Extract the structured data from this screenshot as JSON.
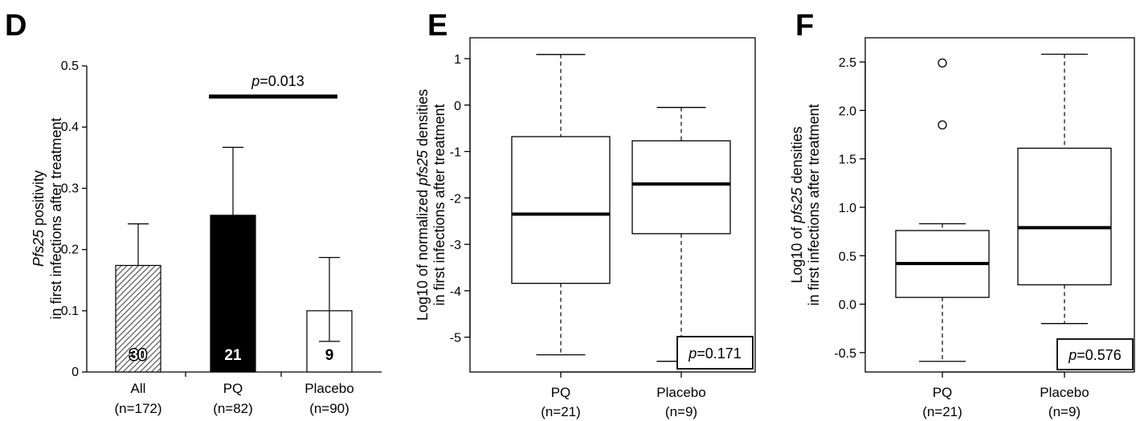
{
  "chart_data": [
    {
      "panel": "D",
      "type": "bar",
      "ylabel_line1": "Pfs25 positivity",
      "ylabel_line1_italic": "Pfs25",
      "ylabel_line1_rest": " positivity",
      "ylabel_line2": "in first infections after treatment",
      "ylim": [
        0,
        0.5
      ],
      "yticks": [
        "0",
        "0.1",
        "0.2",
        "0.3",
        "0.4",
        "0.5"
      ],
      "ytick_values": [
        0,
        0.1,
        0.2,
        0.3,
        0.4,
        0.5
      ],
      "categories": [
        {
          "name": "All",
          "n": "(n=172)"
        },
        {
          "name": "PQ",
          "n": "(n=82)"
        },
        {
          "name": "Placebo",
          "n": "(n=90)"
        }
      ],
      "values": [
        0.174,
        0.256,
        0.1
      ],
      "error_low": [
        0.122,
        0.256,
        0.05
      ],
      "error_high": [
        0.242,
        0.367,
        0.187
      ],
      "bar_labels": [
        "30",
        "21",
        "9"
      ],
      "bar_styles": [
        "hatched",
        "black",
        "white"
      ],
      "pvalue": {
        "prefix": "p",
        "text": "=0.013",
        "between": [
          1,
          2
        ],
        "y": 0.45
      }
    },
    {
      "panel": "E",
      "type": "box",
      "ylabel_line1_pre": "Log10 of normalized ",
      "ylabel_line1_italic": "pfs25",
      "ylabel_line1_post": " densities",
      "ylabel_line2": "in first infections after treatment",
      "ylim": [
        -5.75,
        1.45
      ],
      "yticks": [
        "1",
        "0",
        "-1",
        "-2",
        "-3",
        "-4",
        "-5"
      ],
      "ytick_values": [
        1,
        0,
        -1,
        -2,
        -3,
        -4,
        -5
      ],
      "categories": [
        {
          "name": "PQ",
          "n": "(n=21)"
        },
        {
          "name": "Placebo",
          "n": "(n=9)"
        }
      ],
      "boxes": [
        {
          "min": -5.38,
          "q1": -3.84,
          "median": -2.35,
          "q3": -0.68,
          "max": 1.09,
          "outliers": []
        },
        {
          "min": -5.52,
          "q1": -2.77,
          "median": -1.7,
          "q3": -0.77,
          "max": -0.05,
          "outliers": []
        }
      ],
      "pvalue": {
        "prefix": "p",
        "text": "=0.171"
      }
    },
    {
      "panel": "F",
      "type": "box",
      "ylabel_line1_pre": "Log10 of ",
      "ylabel_line1_italic": "pfs25",
      "ylabel_line1_post": " densities",
      "ylabel_line2": "in first infections after treatment",
      "ylim": [
        -0.7,
        2.75
      ],
      "yticks": [
        "2.5",
        "2.0",
        "1.5",
        "1.0",
        "0.5",
        "0.0",
        "-0.5"
      ],
      "ytick_values": [
        2.5,
        2.0,
        1.5,
        1.0,
        0.5,
        0.0,
        -0.5
      ],
      "categories": [
        {
          "name": "PQ",
          "n": "(n=21)"
        },
        {
          "name": "Placebo",
          "n": "(n=9)"
        }
      ],
      "boxes": [
        {
          "min": -0.59,
          "q1": 0.07,
          "median": 0.42,
          "q3": 0.76,
          "max": 0.83,
          "outliers": [
            2.49,
            1.85
          ]
        },
        {
          "min": -0.2,
          "q1": 0.2,
          "median": 0.79,
          "q3": 1.61,
          "max": 2.58,
          "outliers": []
        }
      ],
      "pvalue": {
        "prefix": "p",
        "text": "=0.576"
      }
    }
  ]
}
